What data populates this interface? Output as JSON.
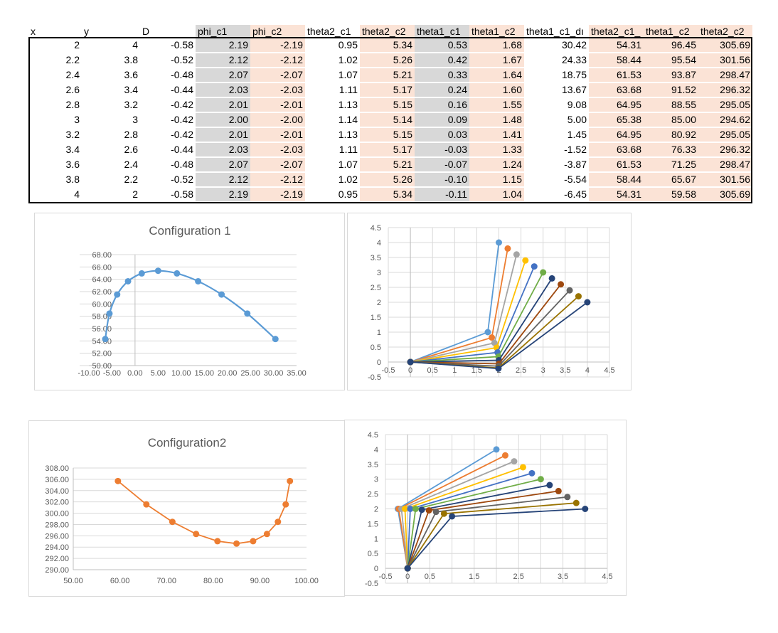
{
  "table": {
    "headers": [
      "x",
      "y",
      "D",
      "phi_c1",
      "phi_c2",
      "theta2_c1",
      "theta2_c2",
      "theta1_c1",
      "theta1_c2",
      "theta1_c1_dı",
      "theta2_c1_",
      "theta1_c2",
      "theta2_c2"
    ],
    "rows": [
      [
        "2",
        "4",
        "-0.58",
        "2.19",
        "-2.19",
        "0.95",
        "5.34",
        "0.53",
        "1.68",
        "30.42",
        "54.31",
        "96.45",
        "305.69"
      ],
      [
        "2.2",
        "3.8",
        "-0.52",
        "2.12",
        "-2.12",
        "1.02",
        "5.26",
        "0.42",
        "1.67",
        "24.33",
        "58.44",
        "95.54",
        "301.56"
      ],
      [
        "2.4",
        "3.6",
        "-0.48",
        "2.07",
        "-2.07",
        "1.07",
        "5.21",
        "0.33",
        "1.64",
        "18.75",
        "61.53",
        "93.87",
        "298.47"
      ],
      [
        "2.6",
        "3.4",
        "-0.44",
        "2.03",
        "-2.03",
        "1.11",
        "5.17",
        "0.24",
        "1.60",
        "13.67",
        "63.68",
        "91.52",
        "296.32"
      ],
      [
        "2.8",
        "3.2",
        "-0.42",
        "2.01",
        "-2.01",
        "1.13",
        "5.15",
        "0.16",
        "1.55",
        "9.08",
        "64.95",
        "88.55",
        "295.05"
      ],
      [
        "3",
        "3",
        "-0.42",
        "2.00",
        "-2.00",
        "1.14",
        "5.14",
        "0.09",
        "1.48",
        "5.00",
        "65.38",
        "85.00",
        "294.62"
      ],
      [
        "3.2",
        "2.8",
        "-0.42",
        "2.01",
        "-2.01",
        "1.13",
        "5.15",
        "0.03",
        "1.41",
        "1.45",
        "64.95",
        "80.92",
        "295.05"
      ],
      [
        "3.4",
        "2.6",
        "-0.44",
        "2.03",
        "-2.03",
        "1.11",
        "5.17",
        "-0.03",
        "1.33",
        "-1.52",
        "63.68",
        "76.33",
        "296.32"
      ],
      [
        "3.6",
        "2.4",
        "-0.48",
        "2.07",
        "-2.07",
        "1.07",
        "5.21",
        "-0.07",
        "1.24",
        "-3.87",
        "61.53",
        "71.25",
        "298.47"
      ],
      [
        "3.8",
        "2.2",
        "-0.52",
        "2.12",
        "-2.12",
        "1.02",
        "5.26",
        "-0.10",
        "1.15",
        "-5.54",
        "58.44",
        "65.67",
        "301.56"
      ],
      [
        "4",
        "2",
        "-0.58",
        "2.19",
        "-2.19",
        "0.95",
        "5.34",
        "-0.11",
        "1.04",
        "-6.45",
        "54.31",
        "59.58",
        "305.69"
      ]
    ]
  },
  "chart_data": [
    {
      "type": "line",
      "title": "Configuration 1",
      "xlabel": "",
      "ylabel": "",
      "xlim": [
        -10,
        35
      ],
      "ylim": [
        50,
        68
      ],
      "x_ticks": [
        "-10.00",
        "-5.00",
        "0.00",
        "5.00",
        "10.00",
        "15.00",
        "20.00",
        "25.00",
        "30.00",
        "35.00"
      ],
      "y_ticks": [
        "50.00",
        "52.00",
        "54.00",
        "56.00",
        "58.00",
        "60.00",
        "62.00",
        "64.00",
        "66.00",
        "68.00"
      ],
      "grid": true,
      "color": "#5b9bd5",
      "series": [
        {
          "x": [
            30.42,
            24.33,
            18.75,
            13.67,
            9.08,
            5.0,
            1.45,
            -1.52,
            -3.87,
            -5.54,
            -6.45
          ],
          "y": [
            54.31,
            58.44,
            61.53,
            63.68,
            64.95,
            65.38,
            64.95,
            63.68,
            61.53,
            58.44,
            54.31
          ]
        }
      ]
    },
    {
      "type": "line",
      "title": "",
      "xlabel": "",
      "ylabel": "",
      "xlim": [
        -0.5,
        4.5
      ],
      "ylim": [
        -0.5,
        4.5
      ],
      "x_ticks": [
        "-0.5",
        "0",
        "0.5",
        "1",
        "1.5",
        "2",
        "2.5",
        "3",
        "3.5",
        "4",
        "4.5"
      ],
      "y_ticks": [
        "-0.5",
        "0",
        "0.5",
        "1",
        "1.5",
        "2",
        "2.5",
        "3",
        "3.5",
        "4",
        "4.5"
      ],
      "grid": true,
      "series": [
        {
          "x": [
            0,
            1.75,
            2
          ],
          "y": [
            0,
            1.0,
            4
          ],
          "color": "#5b9bd5"
        },
        {
          "x": [
            0,
            1.84,
            2.2
          ],
          "y": [
            0,
            0.82,
            3.8
          ],
          "color": "#ed7d31"
        },
        {
          "x": [
            0,
            1.9,
            2.4
          ],
          "y": [
            0,
            0.64,
            3.6
          ],
          "color": "#a5a5a5"
        },
        {
          "x": [
            0,
            1.95,
            2.6
          ],
          "y": [
            0,
            0.48,
            3.4
          ],
          "color": "#ffc000"
        },
        {
          "x": [
            0,
            1.97,
            2.8
          ],
          "y": [
            0,
            0.32,
            3.2
          ],
          "color": "#4472c4"
        },
        {
          "x": [
            0,
            1.99,
            3.0
          ],
          "y": [
            0,
            0.18,
            3.0
          ],
          "color": "#70ad47"
        },
        {
          "x": [
            0,
            2.0,
            3.2
          ],
          "y": [
            0,
            0.06,
            2.8
          ],
          "color": "#264478"
        },
        {
          "x": [
            0,
            2.0,
            3.4
          ],
          "y": [
            0,
            -0.06,
            2.6
          ],
          "color": "#9e480e"
        },
        {
          "x": [
            0,
            1.99,
            3.6
          ],
          "y": [
            0,
            -0.14,
            2.4
          ],
          "color": "#636363"
        },
        {
          "x": [
            0,
            1.99,
            3.8
          ],
          "y": [
            0,
            -0.2,
            2.2
          ],
          "color": "#997300"
        },
        {
          "x": [
            0,
            1.99,
            4.0
          ],
          "y": [
            0,
            -0.22,
            2.0
          ],
          "color": "#264478"
        }
      ]
    },
    {
      "type": "line",
      "title": "Configuration2",
      "xlabel": "",
      "ylabel": "",
      "xlim": [
        50,
        100
      ],
      "ylim": [
        290,
        308
      ],
      "x_ticks": [
        "50.00",
        "60.00",
        "70.00",
        "80.00",
        "90.00",
        "100.00"
      ],
      "y_ticks": [
        "290.00",
        "292.00",
        "294.00",
        "296.00",
        "298.00",
        "300.00",
        "302.00",
        "304.00",
        "306.00",
        "308.00"
      ],
      "grid": true,
      "color": "#ed7d31",
      "series": [
        {
          "x": [
            96.45,
            95.54,
            93.87,
            91.52,
            88.55,
            85.0,
            80.92,
            76.33,
            71.25,
            65.67,
            59.58
          ],
          "y": [
            305.69,
            301.56,
            298.47,
            296.32,
            295.05,
            294.62,
            295.05,
            296.32,
            298.47,
            301.56,
            305.69
          ]
        }
      ]
    },
    {
      "type": "line",
      "title": "",
      "xlabel": "",
      "ylabel": "",
      "xlim": [
        -0.5,
        4.5
      ],
      "ylim": [
        -0.5,
        4.5
      ],
      "x_ticks": [
        "-0.5",
        "0",
        "0.5",
        "1",
        "1.5",
        "2",
        "2.5",
        "3",
        "3.5",
        "4",
        "4.5"
      ],
      "y_ticks": [
        "-0.5",
        "0",
        "0.5",
        "1",
        "1.5",
        "2",
        "2.5",
        "3",
        "3.5",
        "4",
        "4.5"
      ],
      "x_tick_show": [
        true,
        true,
        true,
        false,
        true,
        false,
        true,
        false,
        true,
        false,
        true
      ],
      "grid": true,
      "series": [
        {
          "x": [
            0,
            -0.22,
            2.0
          ],
          "y": [
            0,
            2.0,
            4.0
          ],
          "color": "#5b9bd5"
        },
        {
          "x": [
            0,
            -0.2,
            2.2
          ],
          "y": [
            0,
            2.0,
            3.8
          ],
          "color": "#ed7d31"
        },
        {
          "x": [
            0,
            -0.14,
            2.4
          ],
          "y": [
            0,
            2.0,
            3.6
          ],
          "color": "#a5a5a5"
        },
        {
          "x": [
            0,
            -0.06,
            2.6
          ],
          "y": [
            0,
            2.0,
            3.4
          ],
          "color": "#ffc000"
        },
        {
          "x": [
            0,
            0.06,
            2.8
          ],
          "y": [
            0,
            2.0,
            3.2
          ],
          "color": "#4472c4"
        },
        {
          "x": [
            0,
            0.18,
            3.0
          ],
          "y": [
            0,
            2.0,
            3.0
          ],
          "color": "#70ad47"
        },
        {
          "x": [
            0,
            0.32,
            3.2
          ],
          "y": [
            0,
            1.97,
            2.8
          ],
          "color": "#264478"
        },
        {
          "x": [
            0,
            0.48,
            3.4
          ],
          "y": [
            0,
            1.95,
            2.6
          ],
          "color": "#9e480e"
        },
        {
          "x": [
            0,
            0.64,
            3.6
          ],
          "y": [
            0,
            1.9,
            2.4
          ],
          "color": "#636363"
        },
        {
          "x": [
            0,
            0.82,
            3.8
          ],
          "y": [
            0,
            1.84,
            2.2
          ],
          "color": "#997300"
        },
        {
          "x": [
            0,
            1.0,
            4.0
          ],
          "y": [
            0,
            1.75,
            2.0
          ],
          "color": "#264478"
        }
      ]
    }
  ]
}
